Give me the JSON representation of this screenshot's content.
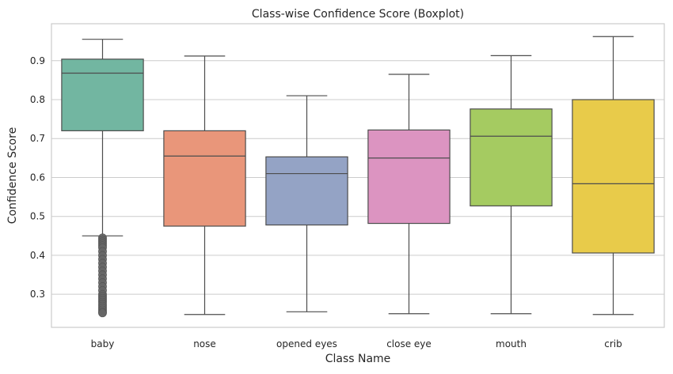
{
  "chart_data": {
    "type": "boxplot",
    "title": "Class-wise Confidence Score (Boxplot)",
    "xlabel": "Class Name",
    "ylabel": "Confidence Score",
    "ylim": [
      0.215,
      0.995
    ],
    "yticks": [
      0.3,
      0.4,
      0.5,
      0.6,
      0.7,
      0.8,
      0.9
    ],
    "ytick_labels": [
      "0.3",
      "0.4",
      "0.5",
      "0.6",
      "0.7",
      "0.8",
      "0.9"
    ],
    "grid": true,
    "categories": [
      "baby",
      "nose",
      "opened eyes",
      "close eye",
      "mouth",
      "crib"
    ],
    "boxes": [
      {
        "category": "baby",
        "whisker_low": 0.45,
        "q1": 0.72,
        "median": 0.868,
        "q3": 0.904,
        "whisker_high": 0.955,
        "color": "#72b6a1",
        "outliers": [
          0.445,
          0.44,
          0.435,
          0.43,
          0.425,
          0.42,
          0.41,
          0.4,
          0.39,
          0.38,
          0.37,
          0.36,
          0.35,
          0.34,
          0.33,
          0.32,
          0.31,
          0.3,
          0.295,
          0.29,
          0.285,
          0.28,
          0.275,
          0.27,
          0.265,
          0.26,
          0.255,
          0.252
        ]
      },
      {
        "category": "nose",
        "whisker_low": 0.248,
        "q1": 0.475,
        "median": 0.655,
        "q3": 0.72,
        "whisker_high": 0.912,
        "color": "#e9967a",
        "outliers": []
      },
      {
        "category": "opened eyes",
        "whisker_low": 0.255,
        "q1": 0.478,
        "median": 0.61,
        "q3": 0.653,
        "whisker_high": 0.81,
        "color": "#94a3c5",
        "outliers": []
      },
      {
        "category": "close eye",
        "whisker_low": 0.25,
        "q1": 0.482,
        "median": 0.65,
        "q3": 0.722,
        "whisker_high": 0.865,
        "color": "#dc94c1",
        "outliers": []
      },
      {
        "category": "mouth",
        "whisker_low": 0.25,
        "q1": 0.527,
        "median": 0.706,
        "q3": 0.776,
        "whisker_high": 0.913,
        "color": "#a5cb61",
        "outliers": []
      },
      {
        "category": "crib",
        "whisker_low": 0.248,
        "q1": 0.406,
        "median": 0.584,
        "q3": 0.8,
        "whisker_high": 0.962,
        "color": "#e8cb4a",
        "outliers": []
      }
    ]
  }
}
